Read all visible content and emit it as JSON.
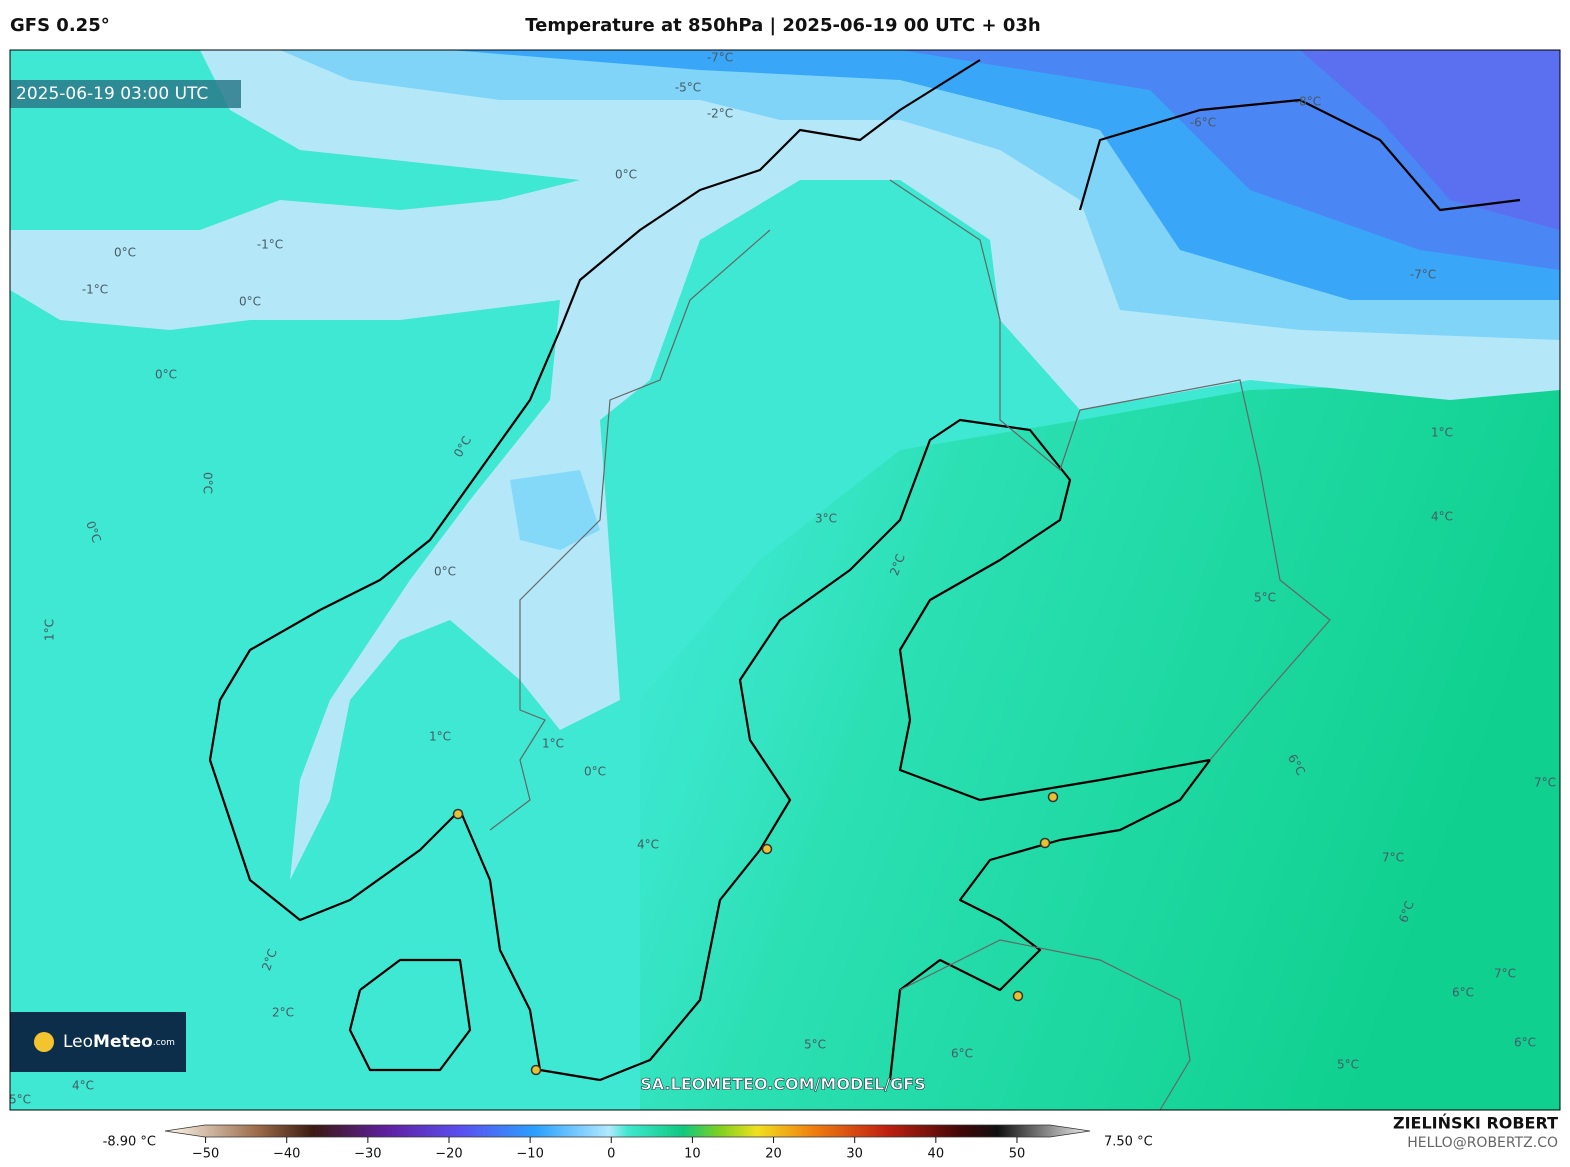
{
  "header": {
    "model": "GFS 0.25°",
    "title": "Temperature at 850hPa | 2025-06-19 00 UTC + 03h"
  },
  "map": {
    "timestamp": "2025-06-19 03:00 UTC",
    "watermark_url": "SA.LEOMETEO.COM/MODEL/GFS",
    "contour_labels": [
      "-7°C",
      "-5°C",
      "-2°C",
      "0°C",
      "0°C",
      "-1°C",
      "-1°C",
      "0°C",
      "0°C",
      "0°C",
      "0°C",
      "0°C",
      "1°C",
      "0°C",
      "3°C",
      "2°C",
      "1°C",
      "1°C",
      "0°C",
      "4°C",
      "5°C",
      "4°C",
      "1°C",
      "-6°C",
      "-8°C",
      "-7°C",
      "6°C",
      "7°C",
      "7°C",
      "6°C",
      "7°C",
      "6°C",
      "6°C",
      "5°C",
      "6°C",
      "5°C",
      "2°C",
      "2°C",
      "4°C",
      "5°C"
    ]
  },
  "logo": {
    "leo": "Leo",
    "meteo": "Meteo",
    "com": ".com"
  },
  "colorbar": {
    "min_label": "-8.90 °C",
    "max_label": "7.50 °C",
    "xlim": [
      -55,
      59
    ],
    "ticks": [
      {
        "value": -50,
        "label": "−50"
      },
      {
        "value": -40,
        "label": "−40"
      },
      {
        "value": -30,
        "label": "−30"
      },
      {
        "value": -20,
        "label": "−20"
      },
      {
        "value": -10,
        "label": "−10"
      },
      0,
      10,
      20,
      30,
      40,
      50
    ]
  },
  "credits": {
    "author": "ZIELIŃSKI ROBERT",
    "email": "HELLO@ROBERTZ.CO"
  }
}
